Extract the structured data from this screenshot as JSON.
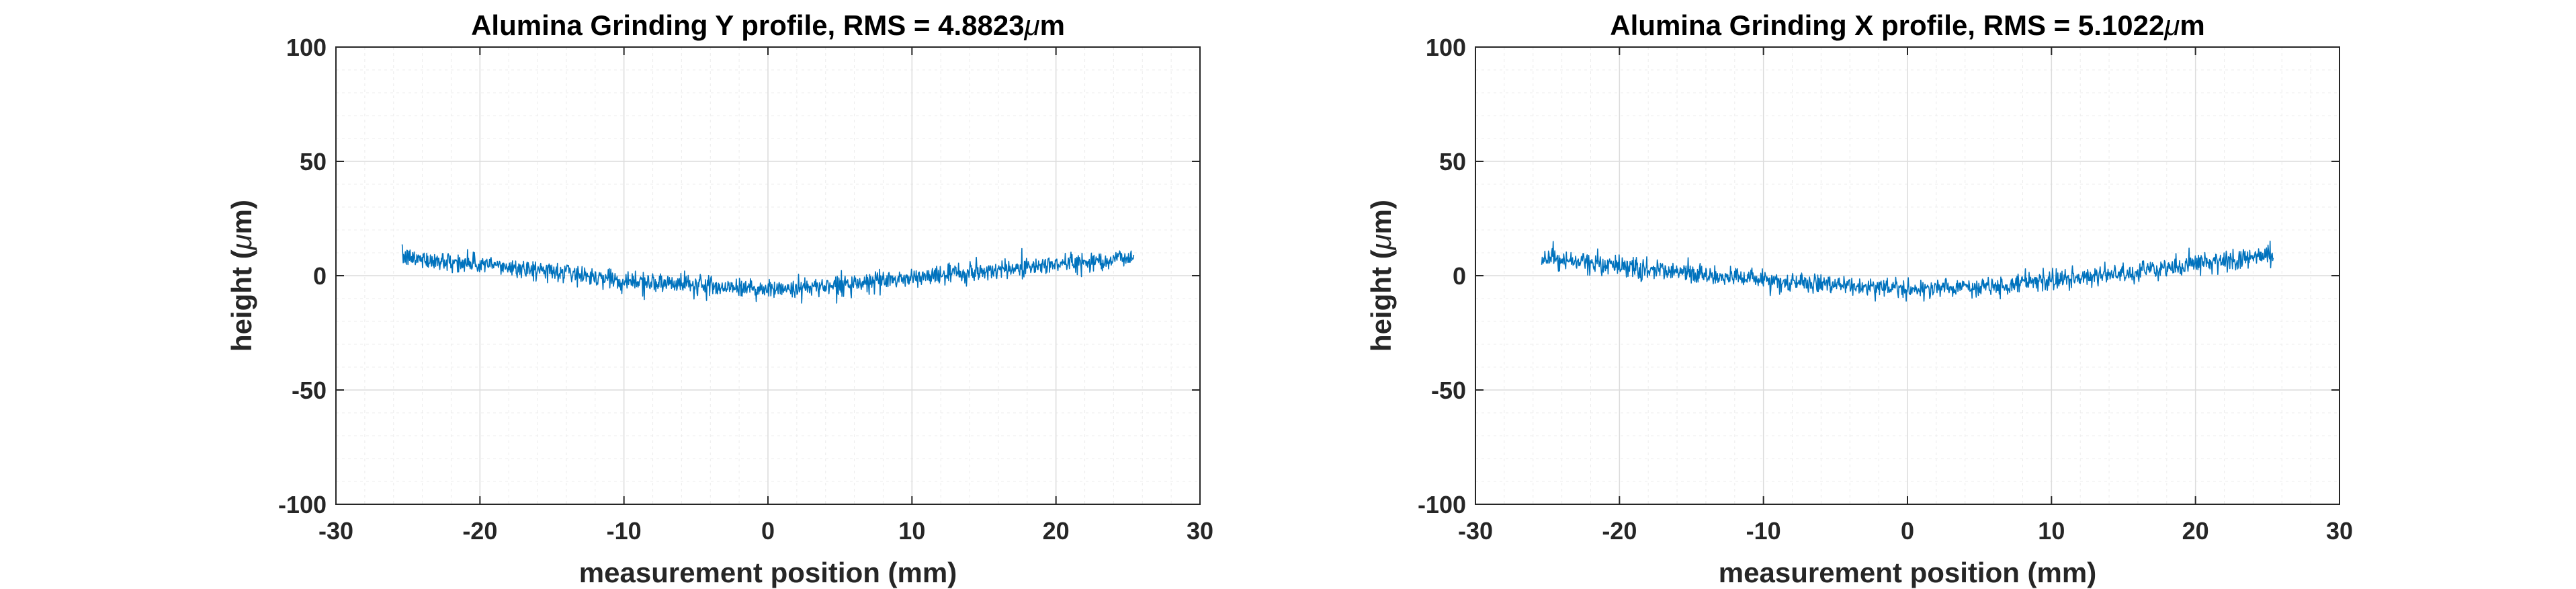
{
  "chart_data": [
    {
      "type": "line",
      "title_text": "Alumina Grinding Y profile, RMS = 4.8823",
      "title_unit": "μm",
      "xlabel": "measurement position (mm)",
      "ylabel_prefix": "height (",
      "ylabel_unit": "μm",
      "ylabel_suffix": ")",
      "xlim": [
        -30,
        30
      ],
      "ylim": [
        -100,
        100
      ],
      "xticks": [
        -30,
        -20,
        -10,
        0,
        10,
        20,
        30
      ],
      "yticks": [
        -100,
        -50,
        0,
        50,
        100
      ],
      "grid": true,
      "minor_grid": true,
      "legend": "none",
      "color": "#0072BD",
      "x_range": [
        -25.4,
        25.4
      ],
      "trend_points": [
        [
          -25.4,
          8
        ],
        [
          -20,
          5
        ],
        [
          -15,
          2
        ],
        [
          -10,
          -2
        ],
        [
          -5,
          -4
        ],
        [
          0,
          -6
        ],
        [
          5,
          -4
        ],
        [
          10,
          -1
        ],
        [
          15,
          2
        ],
        [
          20,
          5
        ],
        [
          25.4,
          8
        ]
      ],
      "noise_amplitude": 4.8823,
      "rms": "4.8823"
    },
    {
      "type": "line",
      "title_text": "Alumina Grinding X profile, RMS = 5.1022",
      "title_unit": "μm",
      "xlabel": "measurement position (mm)",
      "ylabel_prefix": "height (",
      "ylabel_unit": "μm",
      "ylabel_suffix": ")",
      "xlim": [
        -30,
        30
      ],
      "ylim": [
        -100,
        100
      ],
      "xticks": [
        -30,
        -20,
        -10,
        0,
        10,
        20,
        30
      ],
      "yticks": [
        -100,
        -50,
        0,
        50,
        100
      ],
      "grid": true,
      "minor_grid": true,
      "legend": "none",
      "color": "#0072BD",
      "x_range": [
        -25.4,
        25.4
      ],
      "trend_points": [
        [
          -25.4,
          8
        ],
        [
          -20,
          4
        ],
        [
          -15,
          1
        ],
        [
          -10,
          -2
        ],
        [
          -5,
          -4
        ],
        [
          0,
          -6
        ],
        [
          5,
          -5
        ],
        [
          10,
          -2
        ],
        [
          15,
          1
        ],
        [
          20,
          5
        ],
        [
          25.4,
          9
        ]
      ],
      "noise_amplitude": 5.1022,
      "rms": "5.1022"
    }
  ]
}
